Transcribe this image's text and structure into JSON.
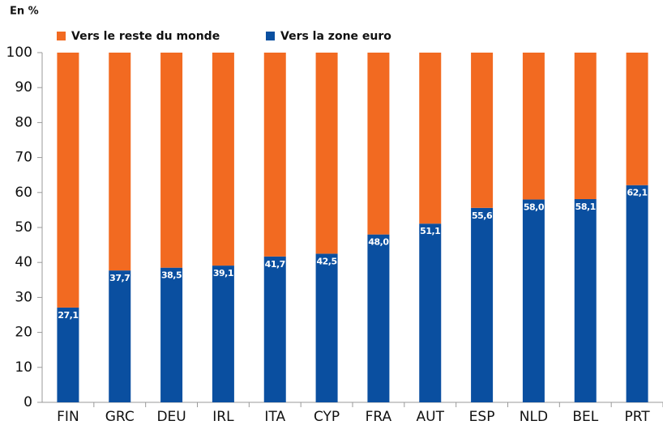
{
  "chart_data": {
    "type": "stacked-bar",
    "title": "En %",
    "categories": [
      "FIN",
      "GRC",
      "DEU",
      "IRL",
      "ITA",
      "CYP",
      "FRA",
      "AUT",
      "ESP",
      "NLD",
      "BEL",
      "PRT"
    ],
    "series": [
      {
        "name": "Vers le reste du monde",
        "color": "#f26a21",
        "values": [
          72.9,
          62.3,
          61.5,
          60.9,
          58.3,
          57.5,
          52.0,
          48.9,
          44.4,
          42.0,
          41.9,
          37.9
        ]
      },
      {
        "name": "Vers la zone euro",
        "color": "#0a4fa0",
        "values": [
          27.1,
          37.7,
          38.5,
          39.1,
          41.7,
          42.5,
          48.0,
          51.1,
          55.6,
          58.0,
          58.1,
          62.1
        ],
        "value_labels": [
          "27,1",
          "37,7",
          "38,5",
          "39,1",
          "41,7",
          "42,5",
          "48,0",
          "51,1",
          "55,6",
          "58,0",
          "58,1",
          "62,1"
        ]
      }
    ],
    "ylim": [
      0,
      100
    ],
    "yticks": [
      0,
      10,
      20,
      30,
      40,
      50,
      60,
      70,
      80,
      90,
      100
    ],
    "grid": false
  }
}
